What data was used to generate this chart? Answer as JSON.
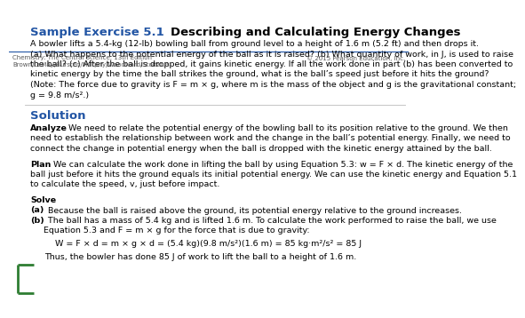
{
  "title_blue": "Sample Exercise 5.1 ",
  "title_black": "Describing and Calculating Energy Changes",
  "title_blue_color": "#2255a4",
  "title_black_color": "#000000",
  "background_color": "#ffffff",
  "border_color": "#2e7d32",
  "solution_color": "#2255a4",
  "footer_line_color": "#2255a4",
  "problem_lines": [
    "A bowler lifts a 5.4-kg (12-lb) bowling ball from ground level to a height of 1.6 m (5.2 ft) and then drops it.",
    "(a) What happens to the potential energy of the ball as it is raised? (b) What quantity of work, in J, is used to raise",
    "the ball? (c) After the ball is dropped, it gains kinetic energy. If all the work done in part (b) has been converted to",
    "kinetic energy by the time the ball strikes the ground, what is the ball’s speed just before it hits the ground?",
    "(Note: The force due to gravity is F = m × g, where m is the mass of the object and g is the gravitational constant;",
    "g = 9.8 m/s².)"
  ],
  "solution_label": "Solution",
  "analyze_bold": "Analyze",
  "analyze_rest": " We need to relate the potential energy of the bowling ball to its position relative to the ground. We then",
  "analyze_lines2": [
    "need to establish the relationship between work and the change in the ball’s potential energy. Finally, we need to",
    "connect the change in potential energy when the ball is dropped with the kinetic energy attained by the ball."
  ],
  "plan_bold": "Plan",
  "plan_rest": " We can calculate the work done in lifting the ball by using Equation 5.3: w = F × d. The kinetic energy of the",
  "plan_lines2": [
    "ball just before it hits the ground equals its initial potential energy. We can use the kinetic energy and Equation 5.1",
    "to calculate the speed, v, just before impact."
  ],
  "solve_label": "Solve",
  "solve_a_bold": "(a)",
  "solve_a_rest": " Because the ball is raised above the ground, its potential energy relative to the ground increases.",
  "solve_b_bold": "(b)",
  "solve_b_rest": " The ball has a mass of 5.4 kg and is lifted 1.6 m. To calculate the work performed to raise the ball, we use",
  "solve_b_line2": "     Equation 5.3 and F = m × g for the force that is due to gravity:",
  "equation": "W = F × d = m × g × d = (5.4 kg)(9.8 m/s²)(1.6 m) = 85 kg·m²/s² = 85 J",
  "conclude": "Thus, the bowler has done 85 J of work to lift the ball to a height of 1.6 m.",
  "footer_left1": "Chemistry: The Central Science, 13th Edition",
  "footer_left2": "Brown/LeMay/Bursten/Murphy/Woodward/Stoltzfus",
  "footer_right": "© 2015 Pearson Education, Inc.",
  "font_size_title": 9.5,
  "font_size_body": 6.8,
  "font_size_footer": 5.0
}
